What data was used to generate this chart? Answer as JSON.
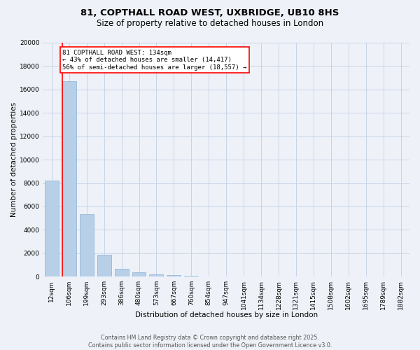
{
  "title_line1": "81, COPTHALL ROAD WEST, UXBRIDGE, UB10 8HS",
  "title_line2": "Size of property relative to detached houses in London",
  "xlabel": "Distribution of detached houses by size in London",
  "ylabel": "Number of detached properties",
  "categories": [
    "12sqm",
    "106sqm",
    "199sqm",
    "293sqm",
    "386sqm",
    "480sqm",
    "573sqm",
    "667sqm",
    "760sqm",
    "854sqm",
    "947sqm",
    "1041sqm",
    "1134sqm",
    "1228sqm",
    "1321sqm",
    "1415sqm",
    "1508sqm",
    "1602sqm",
    "1695sqm",
    "1789sqm",
    "1882sqm"
  ],
  "values": [
    8200,
    16700,
    5350,
    1850,
    650,
    350,
    200,
    130,
    80,
    0,
    0,
    0,
    0,
    0,
    0,
    0,
    0,
    0,
    0,
    0,
    0
  ],
  "bar_color": "#b8cfe8",
  "bar_edge_color": "#8aafd4",
  "grid_color": "#c8d4e8",
  "background_color": "#eef2f8",
  "vline_color": "red",
  "annotation_text": "81 COPTHALL ROAD WEST: 134sqm\n← 43% of detached houses are smaller (14,417)\n56% of semi-detached houses are larger (18,557) →",
  "annotation_box_color": "white",
  "annotation_box_edge": "red",
  "ylim": [
    0,
    20000
  ],
  "yticks": [
    0,
    2000,
    4000,
    6000,
    8000,
    10000,
    12000,
    14000,
    16000,
    18000,
    20000
  ],
  "footer_line1": "Contains HM Land Registry data © Crown copyright and database right 2025.",
  "footer_line2": "Contains public sector information licensed under the Open Government Licence v3.0.",
  "title_fontsize": 9.5,
  "subtitle_fontsize": 8.5,
  "axis_label_fontsize": 7.5,
  "tick_fontsize": 6.5,
  "annotation_fontsize": 6.5,
  "footer_fontsize": 5.8
}
